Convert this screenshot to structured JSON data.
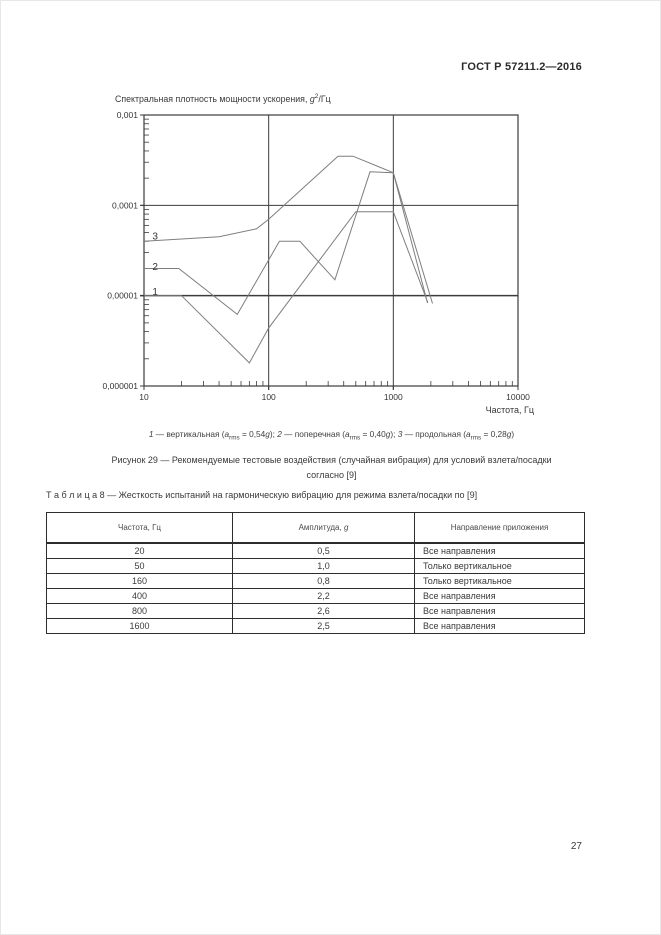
{
  "page": {
    "header": "ГОСТ Р 57211.2—2016",
    "number": "27"
  },
  "chart_data": {
    "type": "line",
    "title": "Спектральная плотность мощности ускорения, g2/Гц",
    "title_parts": {
      "main": "Спектральная плотность мощности ускорения, ",
      "sym": "g",
      "sup": "2",
      "unit": "/Гц"
    },
    "xlabel": "Частота, Гц",
    "ylabel": "Спектральная плотность мощности ускорения, g2/Гц",
    "xscale": "log",
    "yscale": "log",
    "xlim": [
      10,
      10000
    ],
    "ylim": [
      1e-06,
      0.001
    ],
    "x_ticks": [
      {
        "v": 10,
        "label": "10"
      },
      {
        "v": 100,
        "label": "100"
      },
      {
        "v": 1000,
        "label": "1000"
      },
      {
        "v": 10000,
        "label": "10000"
      }
    ],
    "y_ticks": [
      {
        "v": 0.001,
        "label": "0,001"
      },
      {
        "v": 0.0001,
        "label": "0,0001"
      },
      {
        "v": 1e-05,
        "label": "0,00001"
      },
      {
        "v": 1e-06,
        "label": "0,000001"
      }
    ],
    "x_grid": [
      100,
      1000
    ],
    "y_grid": [
      0.0001,
      1e-05
    ],
    "y_grid_width": [
      1,
      1.5
    ],
    "x_minor_decades": [
      10,
      100,
      1000
    ],
    "y_minor_decades": [
      1e-06,
      1e-05,
      0.0001
    ],
    "colors": {
      "axis": "#3b3b3b",
      "curve": "#7e7e7e",
      "text": "#3a3a3a"
    },
    "series": [
      {
        "id": "1",
        "name": "вертикальная",
        "a_rms": "0,54g",
        "label_pos": [
          12.3,
          1.02e-05
        ],
        "points": [
          [
            10,
            1e-05
          ],
          [
            20,
            1e-05
          ],
          [
            70,
            1.8e-06
          ],
          [
            100,
            4.4e-06
          ],
          [
            500,
            8.5e-05
          ],
          [
            1000,
            8.5e-05
          ],
          [
            1890,
            8.4e-06
          ]
        ]
      },
      {
        "id": "2",
        "name": "поперечная",
        "a_rms": "0,40g",
        "label_pos": [
          12.3,
          1.92e-05
        ],
        "points": [
          [
            10,
            2e-05
          ],
          [
            19,
            2e-05
          ],
          [
            56,
            6.2e-06
          ],
          [
            122,
            4e-05
          ],
          [
            178,
            4e-05
          ],
          [
            340,
            1.5e-05
          ],
          [
            650,
            0.000235
          ],
          [
            1000,
            0.00023
          ],
          [
            1880,
            8.3e-06
          ]
        ]
      },
      {
        "id": "3",
        "name": "продольная",
        "a_rms": "0,28g",
        "label_pos": [
          12.3,
          4.19e-05
        ],
        "points": [
          [
            10,
            4e-05
          ],
          [
            40,
            4.5e-05
          ],
          [
            80,
            5.5e-05
          ],
          [
            100,
            7e-05
          ],
          [
            360,
            0.00035
          ],
          [
            475,
            0.00035
          ],
          [
            1000,
            0.00023
          ],
          [
            2060,
            8.2e-06
          ]
        ]
      }
    ],
    "legend": [
      {
        "num": "1",
        "pre": " — вертикальная (",
        "sym_a": "a",
        "sub": "rms",
        "eq": " = 0,54",
        "g": "g",
        "suffix": "); "
      },
      {
        "num": "2",
        "pre": " — поперечная (",
        "sym_a": "a",
        "sub": "rms",
        "eq": " = 0,40",
        "g": "g",
        "suffix": "); "
      },
      {
        "num": "3",
        "pre": " — продольная (",
        "sym_a": "a",
        "sub": "rms",
        "eq": " = 0,28",
        "g": "g",
        "suffix": ")"
      }
    ]
  },
  "figure": {
    "caption_line1": "Рисунок 29 — Рекомендуемые тестовые воздействия (случайная вибрация) для условий взлета/посадки",
    "caption_line2": "согласно [9]"
  },
  "table": {
    "heading": "Т а б л и ц а  8 — Жесткость испытаний на гармоническую вибрацию для режима взлета/посадки по [9]",
    "headers": [
      "Частота, Гц",
      "Амплитуда, ",
      "Направление приложения"
    ],
    "amplitude_sym": "g",
    "rows": [
      [
        "20",
        "0,5",
        "Все направления"
      ],
      [
        "50",
        "1,0",
        "Только вертикальное"
      ],
      [
        "160",
        "0,8",
        "Только вертикальное"
      ],
      [
        "400",
        "2,2",
        "Все направления"
      ],
      [
        "800",
        "2,6",
        "Все направления"
      ],
      [
        "1600",
        "2,5",
        "Все направления"
      ]
    ]
  }
}
